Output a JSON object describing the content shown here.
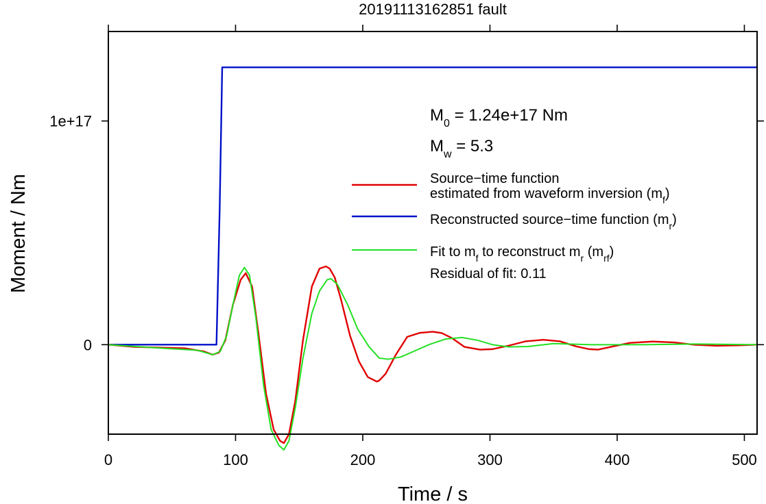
{
  "chart_data": {
    "type": "line",
    "title": "20191113162851 fault",
    "xlabel": "Time / s",
    "ylabel": "Moment / Nm",
    "xlim": [
      0,
      510
    ],
    "ylim": [
      -4e+16,
      1.4e+17
    ],
    "x_ticks": [
      0,
      100,
      200,
      300,
      400,
      500
    ],
    "x_tick_labels": [
      "0",
      "100",
      "200",
      "300",
      "400",
      "500"
    ],
    "y_ticks": [
      0,
      1e+17
    ],
    "y_tick_labels": [
      "0",
      "1e+17"
    ],
    "grid": false,
    "legend_position": "right",
    "annotations": {
      "m0": {
        "symbol": "M",
        "sub": "0",
        "text": " = 1.24e+17 Nm"
      },
      "mw": {
        "symbol": "M",
        "sub": "w",
        "text": " = 5.3"
      },
      "residual": "Residual of fit: 0.11"
    },
    "legend": [
      {
        "color": "#e00000",
        "lines": [
          [
            {
              "t": "Source−time function"
            }
          ],
          [
            {
              "t": "estimated from waveform inversion (m"
            },
            {
              "t": "f",
              "sub": true
            },
            {
              "t": ")"
            }
          ]
        ]
      },
      {
        "color": "#0010c8",
        "lines": [
          [
            {
              "t": "Reconstructed source−time function (m"
            },
            {
              "t": "r",
              "sub": true
            },
            {
              "t": ")"
            }
          ]
        ]
      },
      {
        "color": "#22e022",
        "lines": [
          [
            {
              "t": "Fit to m"
            },
            {
              "t": "f",
              "sub": true
            },
            {
              "t": " to reconstruct m"
            },
            {
              "t": "r",
              "sub": true
            },
            {
              "t": " (m"
            },
            {
              "t": "rf",
              "sub": true
            },
            {
              "t": ")"
            }
          ]
        ]
      }
    ],
    "series": [
      {
        "color": "#0010c8",
        "x": [
          0,
          85,
          87.5,
          89.5,
          510
        ],
        "y": [
          0,
          0,
          6e+16,
          1.24e+17,
          1.24e+17
        ]
      },
      {
        "color": "#e00000",
        "x": [
          0,
          20,
          40,
          60,
          75,
          82,
          87,
          92,
          98,
          104,
          108,
          113,
          118,
          124,
          130,
          135,
          138,
          142,
          147,
          153,
          160,
          166,
          171,
          174,
          178,
          183,
          190,
          197,
          204,
          211,
          213,
          218,
          226,
          235,
          245,
          255,
          262,
          270,
          280,
          292,
          302,
          315,
          328,
          342,
          355,
          368,
          378,
          385,
          395,
          410,
          428,
          445,
          460,
          478,
          495,
          510
        ],
        "y": [
          0,
          -1000000000000000.0,
          -1300000000000000.0,
          -1600000000000000.0,
          -3000000000000000.0,
          -4500000000000000.0,
          -3500000000000000.0,
          2000000000000000.0,
          1.8e+16,
          2.9e+16,
          3.2e+16,
          2.6e+16,
          5000000000000000.0,
          -2.2e+16,
          -3.8e+16,
          -4.3e+16,
          -4.4e+16,
          -4e+16,
          -2.5e+16,
          2000000000000000.0,
          2.6e+16,
          3.4e+16,
          3.5e+16,
          3.4e+16,
          3e+16,
          2e+16,
          4000000000000000.0,
          -7500000000000000.0,
          -1.45e+16,
          -1.65e+16,
          -1.6e+16,
          -1.3e+16,
          -4500000000000000.0,
          3500000000000000.0,
          5300000000000000.0,
          5800000000000000.0,
          5200000000000000.0,
          3000000000000000.0,
          -1000000000000000.0,
          -2200000000000000.0,
          -2000000000000000.0,
          -400000000000000.0,
          1500000000000000.0,
          2200000000000000.0,
          1500000000000000.0,
          -800000000000000.0,
          -2000000000000000.0,
          -2200000000000000.0,
          -1000000000000000.0,
          800000000000000.0,
          1400000000000000.0,
          1000000000000000.0,
          0,
          -500000000000000.0,
          -300000000000000.0,
          0
        ]
      },
      {
        "color": "#22e022",
        "x": [
          0,
          40,
          70,
          82,
          88,
          93,
          98,
          103,
          107,
          111,
          116,
          122,
          128,
          134,
          138,
          142,
          147,
          153,
          160,
          166,
          172,
          175,
          180,
          188,
          196,
          205,
          213,
          220,
          230,
          240,
          252,
          265,
          278,
          290,
          302,
          315,
          330,
          350,
          380,
          420,
          460,
          510
        ],
        "y": [
          0,
          -1500000000000000.0,
          -2500000000000000.0,
          -4500000000000000.0,
          -3000000000000000.0,
          4000000000000000.0,
          1.8e+16,
          3.1e+16,
          3.45e+16,
          3.1e+16,
          1.2e+16,
          -1.8e+16,
          -3.8e+16,
          -4.5e+16,
          -4.7e+16,
          -4.3e+16,
          -2.8e+16,
          -6000000000000000.0,
          1.4e+16,
          2.4e+16,
          2.9e+16,
          2.95e+16,
          2.7e+16,
          1.8e+16,
          7000000000000000.0,
          -1000000000000000.0,
          -6000000000000000.0,
          -6500000000000000.0,
          -5500000000000000.0,
          -3000000000000000.0,
          0,
          2500000000000000.0,
          3200000000000000.0,
          2000000000000000.0,
          0,
          -1000000000000000.0,
          -800000000000000.0,
          500000000000000.0,
          0,
          0,
          300000000000000.0,
          0
        ]
      }
    ]
  }
}
